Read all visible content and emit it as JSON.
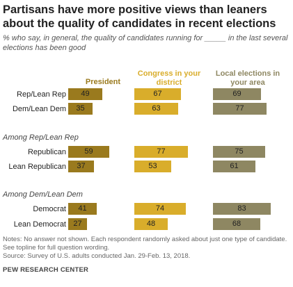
{
  "title": "Partisans have more positive views than leaners about the quality of candidates in recent elections",
  "subtitle": "% who say, in general, the quality of candidates running for _____ in the last several elections has been good",
  "notes": "Notes: No answer not shown. Each respondent randomly asked about just one type of candidate. See topline for full question wording.",
  "source": "Source: Survey of U.S. adults conducted Jan. 29-Feb. 13, 2018.",
  "brand": "PEW RESEARCH CENTER",
  "chart_data": {
    "type": "bar",
    "columns": [
      {
        "name": "President",
        "color": "#9a7a1e"
      },
      {
        "name": "Congress in your district",
        "color": "#d9ad2b"
      },
      {
        "name": "Local elections in your area",
        "color": "#8e8762"
      }
    ],
    "groups": [
      {
        "label": "",
        "rows": [
          {
            "label": "Rep/Lean Rep",
            "values": [
              49,
              67,
              69
            ]
          },
          {
            "label": "Dem/Lean Dem",
            "values": [
              35,
              63,
              77
            ]
          }
        ]
      },
      {
        "label": "Among Rep/Lean Rep",
        "rows": [
          {
            "label": "Republican",
            "values": [
              59,
              77,
              75
            ]
          },
          {
            "label": "Lean Republican",
            "values": [
              37,
              53,
              61
            ]
          }
        ]
      },
      {
        "label": "Among Dem/Lean Dem",
        "rows": [
          {
            "label": "Democrat",
            "values": [
              41,
              74,
              83
            ]
          },
          {
            "label": "Lean Democrat",
            "values": [
              27,
              48,
              68
            ]
          }
        ]
      }
    ],
    "xlim": [
      0,
      100
    ]
  }
}
